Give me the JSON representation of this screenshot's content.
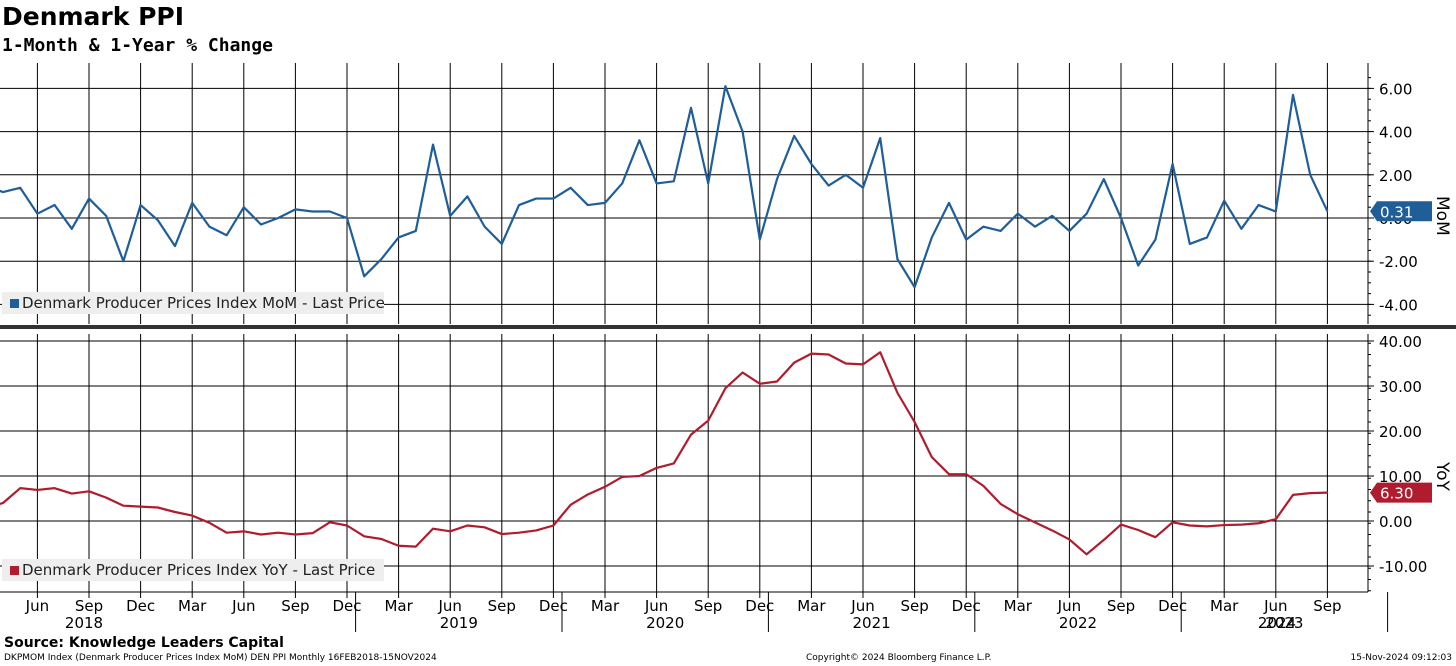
{
  "title": "Denmark PPI",
  "subtitle": "1-Month & 1-Year % Change",
  "source": "Source: Knowledge Leaders Capital",
  "footer": {
    "left": "DKPMOM Index (Denmark Producer Prices Index MoM) DEN PPI  Monthly 16FEB2018-15NOV2024",
    "middle": "Copyright© 2024 Bloomberg Finance L.P.",
    "right": "15-Nov-2024 09:12:03"
  },
  "colors": {
    "mom": "#1f5e99",
    "yoy": "#b01c2e",
    "grid": "#000000"
  },
  "chart_data": [
    {
      "type": "line",
      "name": "mom",
      "ylabel": "MoM",
      "ylim": [
        -5,
        6.8
      ],
      "yticks": [
        6,
        4,
        2,
        0,
        -2,
        -4
      ],
      "ytick_labels": [
        "6.00",
        "4.00",
        "2.00",
        "0.00",
        "-2.00",
        "-4.00"
      ],
      "legend": "Denmark Producer Prices Index MoM - Last Price",
      "legend_position": "bottom-left",
      "last_value_label": "0.31",
      "grid": true,
      "series": [
        {
          "name": "Denmark Producer Prices Index MoM - Last Price",
          "start": "2018-01",
          "values": [
            0.1,
            -0.2,
            1.5,
            1.2,
            1.4,
            0.2,
            0.6,
            -0.5,
            0.9,
            0.1,
            -2.0,
            0.6,
            -0.1,
            -1.3,
            0.7,
            -0.4,
            -0.8,
            0.5,
            -0.3,
            0.0,
            0.4,
            0.3,
            0.3,
            0.0,
            -2.7,
            -1.9,
            -0.9,
            -0.6,
            3.4,
            0.1,
            1.0,
            -0.4,
            -1.2,
            0.6,
            0.9,
            0.9,
            1.4,
            0.6,
            0.7,
            1.6,
            3.6,
            1.6,
            1.7,
            5.1,
            1.6,
            6.1,
            4.0,
            -1.0,
            1.8,
            3.8,
            2.5,
            1.5,
            2.0,
            1.4,
            3.7,
            -1.9,
            -3.2,
            -0.9,
            0.7,
            -1.0,
            -0.4,
            -0.6,
            0.2,
            -0.4,
            0.1,
            -0.6,
            0.2,
            1.8,
            0.0,
            -2.2,
            -1.0,
            2.5,
            -1.2,
            -0.9,
            0.8,
            -0.5,
            0.6,
            0.3,
            5.7,
            2.0,
            0.31
          ]
        }
      ]
    },
    {
      "type": "line",
      "name": "yoy",
      "ylabel": "YoY",
      "ylim": [
        -15.5,
        43
      ],
      "yticks": [
        40,
        30,
        20,
        10,
        0,
        -10
      ],
      "ytick_labels": [
        "40.00",
        "30.00",
        "20.00",
        "10.00",
        "0.00",
        "-10.00"
      ],
      "legend": "Denmark Producer Prices Index YoY - Last Price",
      "legend_position": "bottom-left",
      "last_value_label": "6.30",
      "grid": true,
      "series": [
        {
          "name": "Denmark Producer Prices Index YoY - Last Price",
          "start": "2018-01",
          "values": [
            1.2,
            1.7,
            2.9,
            4.0,
            7.3,
            6.9,
            7.3,
            6.1,
            6.6,
            5.2,
            3.4,
            3.2,
            3.0,
            2.0,
            1.2,
            -0.4,
            -2.6,
            -2.3,
            -3.0,
            -2.6,
            -3.0,
            -2.7,
            -0.3,
            -1.0,
            -3.4,
            -4.0,
            -5.5,
            -5.7,
            -1.7,
            -2.3,
            -1.0,
            -1.4,
            -2.9,
            -2.6,
            -2.1,
            -1.0,
            3.6,
            5.9,
            7.6,
            9.8,
            10.0,
            11.8,
            12.8,
            19.2,
            22.3,
            29.5,
            33.0,
            30.5,
            31.0,
            35.2,
            37.2,
            37.0,
            35.0,
            34.8,
            37.5,
            28.5,
            22.0,
            14.2,
            10.4,
            10.4,
            7.8,
            3.8,
            1.5,
            -0.3,
            -2.1,
            -4.1,
            -7.4,
            -4.2,
            -0.8,
            -2.0,
            -3.6,
            -0.3,
            -1.0,
            -1.2,
            -0.9,
            -0.8,
            -0.5,
            0.4,
            5.8,
            6.2,
            6.3
          ]
        }
      ]
    }
  ],
  "x_axis": {
    "month_labels": [
      "Mar",
      "Jun",
      "Sep",
      "Dec",
      "Mar",
      "Jun",
      "Sep",
      "Dec",
      "Mar",
      "Jun",
      "Sep",
      "Dec",
      "Mar",
      "Jun",
      "Sep",
      "Dec",
      "Mar",
      "Jun",
      "Sep",
      "Dec",
      "Mar",
      "Jun",
      "Sep",
      "Dec",
      "Mar",
      "Jun",
      "Sep"
    ],
    "years": [
      "2018",
      "2019",
      "2020",
      "2021",
      "2022",
      "2023",
      "2024"
    ]
  }
}
